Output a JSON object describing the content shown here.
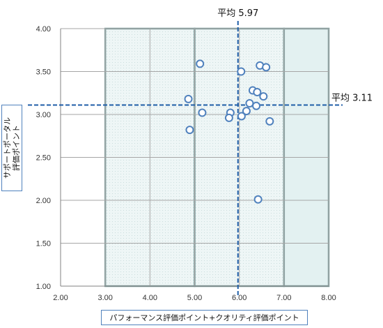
{
  "chart_data": {
    "type": "scatter",
    "title": "",
    "xlabel": "パフォーマンス評価ポイント+クオリティ評価ポイント",
    "ylabel_lines": [
      "サポートポータル",
      "評価ポイント"
    ],
    "xlim": [
      2.0,
      8.0
    ],
    "ylim": [
      1.0,
      4.0
    ],
    "x_ticks": [
      "2.00",
      "3.00",
      "4.00",
      "5.00",
      "6.00",
      "7.00",
      "8.00"
    ],
    "y_ticks": [
      "1.00",
      "1.50",
      "2.00",
      "2.50",
      "3.00",
      "3.50",
      "4.00"
    ],
    "grid": true,
    "avg_x": 5.97,
    "avg_y": 3.11,
    "avg_x_label": "平均 5.97",
    "avg_y_label": "平均 3.11",
    "shaded_regions": [
      {
        "x0": 3.0,
        "x1": 5.0
      },
      {
        "x0": 5.0,
        "x1": 7.0
      },
      {
        "x0": 7.0,
        "x1": 8.0
      }
    ],
    "points": [
      {
        "x": 5.12,
        "y": 3.59
      },
      {
        "x": 6.04,
        "y": 3.5
      },
      {
        "x": 6.46,
        "y": 3.57
      },
      {
        "x": 6.6,
        "y": 3.55
      },
      {
        "x": 4.86,
        "y": 3.18
      },
      {
        "x": 5.17,
        "y": 3.02
      },
      {
        "x": 5.8,
        "y": 3.02
      },
      {
        "x": 5.77,
        "y": 2.96
      },
      {
        "x": 6.05,
        "y": 2.98
      },
      {
        "x": 6.16,
        "y": 3.04
      },
      {
        "x": 6.23,
        "y": 3.13
      },
      {
        "x": 6.3,
        "y": 3.28
      },
      {
        "x": 6.4,
        "y": 3.26
      },
      {
        "x": 6.38,
        "y": 3.1
      },
      {
        "x": 6.54,
        "y": 3.21
      },
      {
        "x": 6.68,
        "y": 2.92
      },
      {
        "x": 4.89,
        "y": 2.82
      },
      {
        "x": 6.42,
        "y": 2.01
      }
    ],
    "colors": {
      "marker_stroke": "#4f81bd",
      "avg_line": "#1f5ea8",
      "grid": "#a6a6a6",
      "region_border": "#7f9f9f",
      "region_fill": "#eaf4f4"
    }
  }
}
